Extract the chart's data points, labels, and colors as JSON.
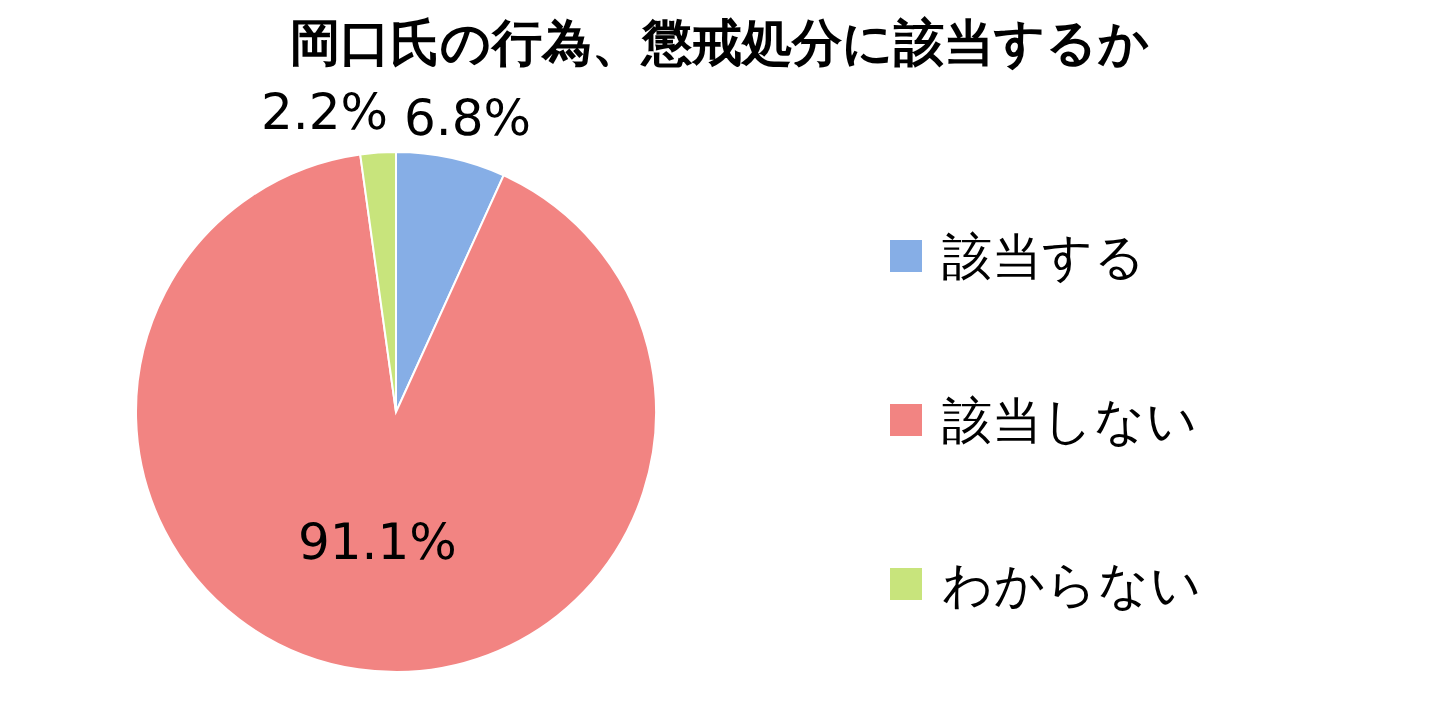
{
  "chart_data": {
    "type": "pie",
    "title": "岡口氏の行為、懲戒処分に該当するか",
    "categories": [
      "該当する",
      "該当しない",
      "わからない"
    ],
    "values": [
      6.8,
      91.1,
      2.2
    ],
    "value_labels": [
      "6.8%",
      "91.1%",
      "2.2%"
    ],
    "colors": [
      "#86aee6",
      "#f28482",
      "#c8e47c"
    ],
    "legend": "right"
  }
}
